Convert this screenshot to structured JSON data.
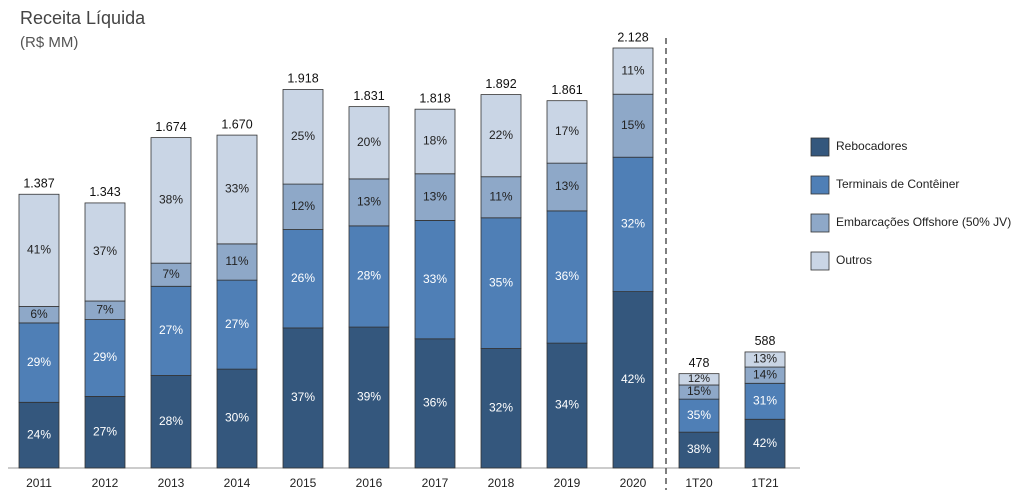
{
  "chart_data": {
    "type": "stacked-bar",
    "title": "Receita Líquida",
    "subtitle": "(R$ MM)",
    "categories": [
      "2011",
      "2012",
      "2013",
      "2014",
      "2015",
      "2016",
      "2017",
      "2018",
      "2019",
      "2020",
      "1T20",
      "1T21"
    ],
    "series": [
      {
        "name": "Rebocadores",
        "color": "#34577d",
        "values": [
          24,
          27,
          28,
          30,
          37,
          39,
          36,
          32,
          34,
          42,
          38,
          42
        ],
        "value_labels": [
          "24%",
          "27%",
          "28%",
          "30%",
          "37%",
          "39%",
          "36%",
          "32%",
          "34%",
          "42%",
          "38%",
          "42%"
        ]
      },
      {
        "name": "Terminais de Contêiner",
        "color": "#4f7fb6",
        "values": [
          29,
          29,
          27,
          27,
          26,
          28,
          33,
          35,
          36,
          32,
          35,
          31
        ],
        "value_labels": [
          "29%",
          "29%",
          "27%",
          "27%",
          "26%",
          "28%",
          "33%",
          "35%",
          "36%",
          "32%",
          "35%",
          "31%"
        ]
      },
      {
        "name": "Embarcações Offshore (50% JV)",
        "color": "#8ea8c8",
        "values": [
          6,
          7,
          7,
          11,
          12,
          13,
          13,
          11,
          13,
          15,
          15,
          14
        ],
        "value_labels": [
          "6%",
          "7%",
          "7%",
          "11%",
          "12%",
          "13%",
          "13%",
          "11%",
          "13%",
          "15%",
          "15%",
          "14%"
        ]
      },
      {
        "name": "Outros",
        "color": "#c9d5e5",
        "values": [
          41,
          37,
          38,
          33,
          25,
          20,
          18,
          22,
          17,
          11,
          12,
          13
        ],
        "value_labels": [
          "41%",
          "37%",
          "38%",
          "33%",
          "25%",
          "20%",
          "18%",
          "22%",
          "17%",
          "11%",
          "12%",
          "13%"
        ]
      }
    ],
    "totals": {
      "values": [
        1387,
        1343,
        1674,
        1670,
        1918,
        1831,
        1818,
        1892,
        1861,
        2128,
        478,
        588
      ],
      "value_labels": [
        "1.387",
        "1.343",
        "1.674",
        "1.670",
        "1.918",
        "1.831",
        "1.818",
        "1.892",
        "1.861",
        "2.128",
        "478",
        "588"
      ]
    }
  }
}
